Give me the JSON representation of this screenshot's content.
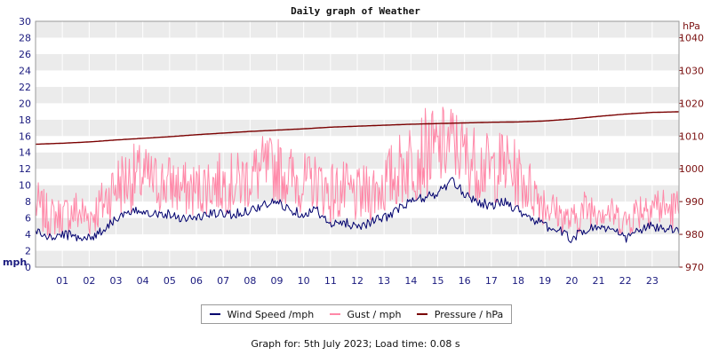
{
  "chart_data": {
    "type": "line",
    "title": "Daily graph of Weather",
    "left_axis": {
      "label": "mph",
      "range": [
        0,
        30
      ],
      "ticks": [
        "0",
        "2",
        "4",
        "6",
        "8",
        "10",
        "12",
        "14",
        "16",
        "18",
        "20",
        "22",
        "24",
        "26",
        "28",
        "30"
      ]
    },
    "right_axis": {
      "label": "hPa",
      "range": [
        970,
        1045
      ],
      "ticks": [
        "970",
        "980",
        "990",
        "1000",
        "1010",
        "1020",
        "1030",
        "1040"
      ]
    },
    "x_axis": {
      "ticks": [
        "01",
        "02",
        "03",
        "04",
        "05",
        "06",
        "07",
        "08",
        "09",
        "10",
        "11",
        "12",
        "13",
        "14",
        "15",
        "16",
        "17",
        "18",
        "19",
        "20",
        "21",
        "22",
        "23"
      ],
      "range": [
        0,
        24
      ]
    },
    "grid": "horizontal bands",
    "series": [
      {
        "name": "Wind Speed /mph",
        "color": "#00006e",
        "axis": "left",
        "x": [
          0,
          0.5,
          1,
          1.5,
          2,
          2.5,
          3,
          3.5,
          4,
          4.5,
          5,
          5.5,
          6,
          6.5,
          7,
          7.5,
          8,
          8.5,
          9,
          9.5,
          10,
          10.5,
          11,
          11.5,
          12,
          12.5,
          13,
          13.5,
          14,
          14.5,
          15,
          15.5,
          16,
          16.5,
          17,
          17.5,
          18,
          18.5,
          19,
          19.5,
          20,
          20.5,
          21,
          21.5,
          22,
          22.5,
          23,
          23.5,
          24
        ],
        "values": [
          4.5,
          3.5,
          4,
          3.8,
          3.5,
          4.5,
          6,
          6.5,
          7,
          6.5,
          6.5,
          6,
          6,
          6.5,
          6.5,
          6.5,
          7,
          7.5,
          8,
          7,
          6.5,
          7,
          5,
          5.5,
          5,
          5.5,
          6,
          7,
          8,
          8.5,
          9,
          10.5,
          9,
          8,
          7.5,
          8,
          7,
          6,
          5,
          4.5,
          3.5,
          4.5,
          5,
          4.5,
          3.5,
          4.5,
          5,
          4.5,
          4.5
        ]
      },
      {
        "name": "Gust / mph",
        "color": "#ff88a8",
        "axis": "left",
        "x": [
          0,
          0.5,
          1,
          1.5,
          2,
          2.5,
          3,
          3.5,
          4,
          4.5,
          5,
          5.5,
          6,
          6.5,
          7,
          7.5,
          8,
          8.5,
          9,
          9.5,
          10,
          10.5,
          11,
          11.5,
          12,
          12.5,
          13,
          13.5,
          14,
          14.5,
          15,
          15.5,
          16,
          16.5,
          17,
          17.5,
          18,
          18.5,
          19,
          19.5,
          20,
          20.5,
          21,
          21.5,
          22,
          22.5,
          23,
          23.5,
          24
        ],
        "values": [
          10,
          8,
          8,
          9,
          8,
          10,
          13,
          14,
          14,
          13,
          13,
          12,
          12,
          13,
          13,
          13,
          14,
          15,
          15,
          14,
          13,
          13,
          12,
          12,
          11,
          12,
          13,
          15,
          17,
          18,
          18,
          19,
          17,
          16,
          15,
          16,
          14,
          12,
          10,
          8,
          7,
          9,
          9,
          8,
          7,
          9,
          10,
          9,
          9
        ]
      },
      {
        "name": "Pressure / hPa",
        "color": "#7a0000",
        "axis": "right",
        "x": [
          0,
          1,
          2,
          3,
          4,
          5,
          6,
          7,
          8,
          9,
          10,
          11,
          12,
          13,
          14,
          15,
          16,
          17,
          18,
          19,
          20,
          21,
          22,
          23,
          24
        ],
        "values": [
          1007.5,
          1007.8,
          1008.2,
          1008.8,
          1009.3,
          1009.8,
          1010.4,
          1010.9,
          1011.4,
          1011.8,
          1012.2,
          1012.7,
          1013,
          1013.3,
          1013.6,
          1013.8,
          1014,
          1014.2,
          1014.3,
          1014.6,
          1015.2,
          1016,
          1016.7,
          1017.2,
          1017.4
        ]
      }
    ]
  },
  "footer": {
    "text": "Graph for: 5th July 2023; Load time: 0.08 s"
  }
}
